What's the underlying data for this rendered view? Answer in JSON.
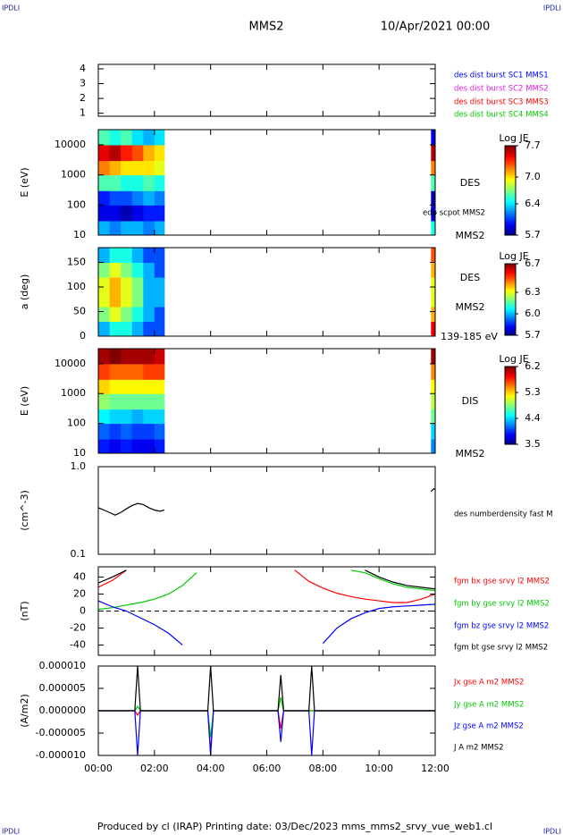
{
  "header": {
    "corner_left": "IPDLI",
    "corner_right": "IPDLI",
    "title": "MMS2",
    "date": "10/Apr/2021 00:00"
  },
  "footer": {
    "text": "Produced by cl (IRAP)   Printing date: 03/Dec/2023   mms_mms2_srvy_vue_web1.cl",
    "corner_left": "IPDLI",
    "corner_right": "IPDLI"
  },
  "chart_data": [
    {
      "type": "line",
      "xlim": [
        0,
        12
      ],
      "ylim": [
        0.8,
        4.3
      ],
      "yticks": [
        1,
        2,
        3,
        4
      ],
      "series": [
        {
          "name": "des dist burst SC1 MMS1",
          "color": "#0000ff"
        },
        {
          "name": "des dist burst SC2 MMS2",
          "color": "#e020e0"
        },
        {
          "name": "des dist burst SC3 MMS3",
          "color": "#ff0000"
        },
        {
          "name": "des dist burst SC4 MMS4",
          "color": "#00c800"
        }
      ]
    },
    {
      "type": "spectrogram",
      "ylabel": "E (eV)",
      "log_y": true,
      "xlim": [
        0,
        12
      ],
      "ylim": [
        10,
        32000
      ],
      "yticks": [
        10,
        100,
        1000,
        10000
      ],
      "y_edges": [
        10,
        30,
        100,
        300,
        1000,
        3000,
        10000,
        32000
      ],
      "segments": [
        {
          "x_edges": [
            0,
            0.4,
            0.8,
            1.2,
            1.6,
            2.0,
            2.35
          ],
          "z": [
            [
              6.3,
              6.2,
              6.3,
              6.3,
              6.2,
              6.3
            ],
            [
              5.9,
              5.9,
              5.8,
              5.9,
              6.0,
              6.0
            ],
            [
              6.0,
              6.1,
              6.1,
              6.2,
              6.3,
              6.2
            ],
            [
              6.6,
              6.6,
              6.5,
              6.5,
              6.6,
              6.5
            ],
            [
              7.2,
              7.1,
              7.0,
              7.0,
              7.0,
              6.9
            ],
            [
              7.5,
              7.6,
              7.4,
              7.3,
              7.1,
              7.0
            ],
            [
              6.6,
              6.5,
              6.6,
              6.4,
              6.3,
              6.4
            ]
          ]
        },
        {
          "x_edges": [
            11.85,
            12
          ],
          "z": [
            [
              6.5
            ],
            [
              5.9
            ],
            [
              5.8
            ],
            [
              6.6
            ],
            [
              7.2
            ],
            [
              7.6
            ],
            [
              5.9
            ]
          ]
        }
      ],
      "colorbar": {
        "label": "Log JE",
        "lim": [
          5.7,
          7.7
        ],
        "ticks": [
          5.7,
          6.4,
          {
            "value": 7,
            "label": "7.0"
          },
          7.7
        ]
      },
      "labels": [
        "DES",
        "edp scpot MMS2",
        "MMS2"
      ]
    },
    {
      "type": "spectrogram",
      "ylabel": "a (deg)",
      "log_y": false,
      "xlim": [
        0,
        12
      ],
      "ylim": [
        0,
        180
      ],
      "yticks": [
        0,
        50,
        100,
        150
      ],
      "y_edges": [
        0,
        30,
        60,
        90,
        120,
        150,
        180
      ],
      "segments": [
        {
          "x_edges": [
            0,
            0.4,
            0.8,
            1.2,
            1.6,
            2.0,
            2.35
          ],
          "z": [
            [
              6.0,
              6.1,
              6.1,
              6.0,
              5.9,
              5.9
            ],
            [
              6.2,
              6.3,
              6.2,
              6.1,
              6.0,
              5.9
            ],
            [
              6.3,
              6.4,
              6.3,
              6.2,
              6.0,
              6.0
            ],
            [
              6.3,
              6.4,
              6.3,
              6.2,
              6.0,
              6.0
            ],
            [
              6.2,
              6.3,
              6.2,
              6.1,
              6.0,
              5.9
            ],
            [
              6.0,
              6.1,
              6.1,
              6.0,
              5.9,
              5.9
            ]
          ]
        },
        {
          "x_edges": [
            11.85,
            12
          ],
          "z": [
            [
              6.6
            ],
            [
              6.4
            ],
            [
              6.3
            ],
            [
              6.3
            ],
            [
              6.4
            ],
            [
              6.5
            ]
          ]
        }
      ],
      "colorbar": {
        "label": "Log JE",
        "lim": [
          5.7,
          6.7
        ],
        "ticks": [
          5.7,
          {
            "value": 6,
            "label": "6.0"
          },
          6.3,
          6.7
        ]
      },
      "labels": [
        "DES",
        "MMS2",
        "139-185 eV"
      ]
    },
    {
      "type": "spectrogram",
      "ylabel": "E (eV)",
      "log_y": true,
      "xlim": [
        0,
        12
      ],
      "ylim": [
        10,
        32000
      ],
      "yticks": [
        10,
        100,
        1000,
        10000
      ],
      "y_edges": [
        10,
        30,
        100,
        300,
        1000,
        3000,
        10000,
        32000
      ],
      "segments": [
        {
          "x_edges": [
            0,
            0.4,
            0.8,
            1.2,
            1.6,
            2.0,
            2.35
          ],
          "z": [
            [
              3.9,
              3.8,
              3.9,
              3.8,
              3.8,
              3.9
            ],
            [
              4.1,
              4.0,
              4.1,
              4.0,
              4.0,
              4.1
            ],
            [
              4.5,
              4.4,
              4.4,
              4.3,
              4.4,
              4.4
            ],
            [
              4.9,
              4.8,
              4.8,
              4.8,
              4.8,
              4.8
            ],
            [
              5.3,
              5.2,
              5.2,
              5.2,
              5.2,
              5.2
            ],
            [
              5.7,
              5.6,
              5.6,
              5.6,
              5.7,
              5.7
            ],
            [
              6.1,
              6.2,
              6.1,
              6.1,
              6.1,
              6.0
            ]
          ]
        },
        {
          "x_edges": [
            11.85,
            12
          ],
          "z": [
            [
              4.2
            ],
            [
              4.4
            ],
            [
              4.8
            ],
            [
              5.0
            ],
            [
              5.2
            ],
            [
              5.5
            ],
            [
              6.1
            ]
          ]
        }
      ],
      "colorbar": {
        "label": "Log JE",
        "lim": [
          3.5,
          6.2
        ],
        "ticks": [
          3.5,
          4.4,
          5.3,
          6.2
        ]
      },
      "labels": [
        "DIS",
        "MMS2"
      ]
    },
    {
      "type": "line",
      "ylabel": "(cm^-3)",
      "log_y": true,
      "xlim": [
        0,
        12
      ],
      "ylim": [
        0.1,
        1
      ],
      "yticks": [
        {
          "value": 1,
          "label": "1.0"
        },
        0.1
      ],
      "x": [
        0,
        0.2,
        0.4,
        0.6,
        0.8,
        1.0,
        1.2,
        1.4,
        1.6,
        1.8,
        2.0,
        2.2,
        2.35,
        7,
        11.85,
        11.95,
        12
      ],
      "series": [
        {
          "name": "des numberdensity fast M",
          "color": "#000000",
          "values": [
            0.34,
            0.32,
            0.3,
            0.28,
            0.3,
            0.33,
            0.36,
            0.38,
            0.37,
            0.34,
            0.32,
            0.31,
            0.32,
            null,
            0.52,
            0.56,
            0.55
          ]
        }
      ]
    },
    {
      "type": "line",
      "ylabel": "(nT)",
      "xlim": [
        0,
        12
      ],
      "ylim": [
        -52,
        52
      ],
      "zero_line": true,
      "yticks": [
        -40,
        -20,
        0,
        20,
        40
      ],
      "x": [
        0,
        0.5,
        1,
        1.5,
        2,
        2.5,
        3,
        3.5,
        4,
        4.5,
        5,
        5.5,
        6,
        6.5,
        7,
        7.5,
        8,
        8.5,
        9,
        9.5,
        10,
        10.5,
        11,
        11.5,
        12
      ],
      "series": [
        {
          "name": "fgm bx gse srvy l2 MMS2",
          "color": "#ff0000",
          "values": [
            28,
            36,
            48,
            null,
            null,
            null,
            null,
            null,
            null,
            null,
            null,
            null,
            null,
            null,
            48,
            35,
            27,
            21,
            17,
            14,
            12,
            10,
            10,
            14,
            20
          ]
        },
        {
          "name": "fgm by gse srvy l2 MMS2",
          "color": "#00c800",
          "values": [
            2,
            4,
            7,
            10,
            14,
            20,
            30,
            45,
            null,
            null,
            null,
            null,
            null,
            null,
            null,
            null,
            null,
            null,
            48,
            45,
            38,
            32,
            28,
            26,
            24
          ]
        },
        {
          "name": "fgm bz gse srvy l2 MMS2",
          "color": "#0000ff",
          "values": [
            12,
            5,
            0,
            -8,
            -16,
            -26,
            -40,
            null,
            null,
            null,
            null,
            null,
            null,
            null,
            null,
            null,
            -38,
            -20,
            -9,
            -2,
            3,
            5,
            6,
            7,
            8
          ]
        },
        {
          "name": "fgm bt gse srvy l2 MMS2",
          "color": "#000000",
          "values": [
            33,
            40,
            48,
            null,
            null,
            null,
            null,
            null,
            null,
            null,
            null,
            null,
            null,
            null,
            null,
            null,
            null,
            null,
            null,
            48,
            40,
            34,
            30,
            28,
            26
          ]
        }
      ]
    },
    {
      "type": "line",
      "ylabel": "(A/m2)",
      "xlim": [
        0,
        12
      ],
      "ylim": [
        -1e-05,
        1e-05
      ],
      "yticks": [
        {
          "value": 1e-05,
          "label": "0.000010"
        },
        {
          "value": 5e-06,
          "label": "0.000005"
        },
        {
          "value": 0,
          "label": "0.000000"
        },
        {
          "value": -5e-06,
          "label": "-0.000005"
        },
        {
          "value": -1e-05,
          "label": "-0.000010"
        }
      ],
      "xticks": [
        {
          "value": 0,
          "label": "00:00"
        },
        {
          "value": 2,
          "label": "02:00"
        },
        {
          "value": 4,
          "label": "04:00"
        },
        {
          "value": 6,
          "label": "06:00"
        },
        {
          "value": 8,
          "label": "08:00"
        },
        {
          "value": 10,
          "label": "10:00"
        },
        {
          "value": 12,
          "label": "12:00"
        }
      ],
      "x": [
        0,
        1.3,
        1.4,
        1.5,
        3.9,
        4.0,
        4.1,
        6.4,
        6.5,
        6.6,
        7.5,
        7.6,
        7.7,
        12
      ],
      "series": [
        {
          "name": "Jx gse A m2 MMS2",
          "color": "#ff0000",
          "values": [
            0,
            0,
            -1e-06,
            0,
            0,
            -9e-06,
            0,
            0,
            -4e-06,
            0,
            0,
            0,
            0,
            0
          ]
        },
        {
          "name": "Jy gse A m2 MMS2",
          "color": "#00c800",
          "values": [
            0,
            0,
            1e-06,
            0,
            0,
            -6e-06,
            0,
            0,
            3e-06,
            0,
            0,
            0,
            0,
            0
          ]
        },
        {
          "name": "Jz gse A m2 MMS2",
          "color": "#0000ff",
          "values": [
            0,
            0,
            -1e-05,
            0,
            0,
            -1e-05,
            0,
            0,
            -7e-06,
            0,
            0,
            -1e-05,
            0,
            0
          ]
        },
        {
          "name": "J A m2 MMS2",
          "color": "#000000",
          "values": [
            0,
            0,
            1e-05,
            0,
            0,
            1e-05,
            0,
            0,
            8e-06,
            0,
            0,
            1e-05,
            0,
            0
          ]
        }
      ]
    }
  ]
}
